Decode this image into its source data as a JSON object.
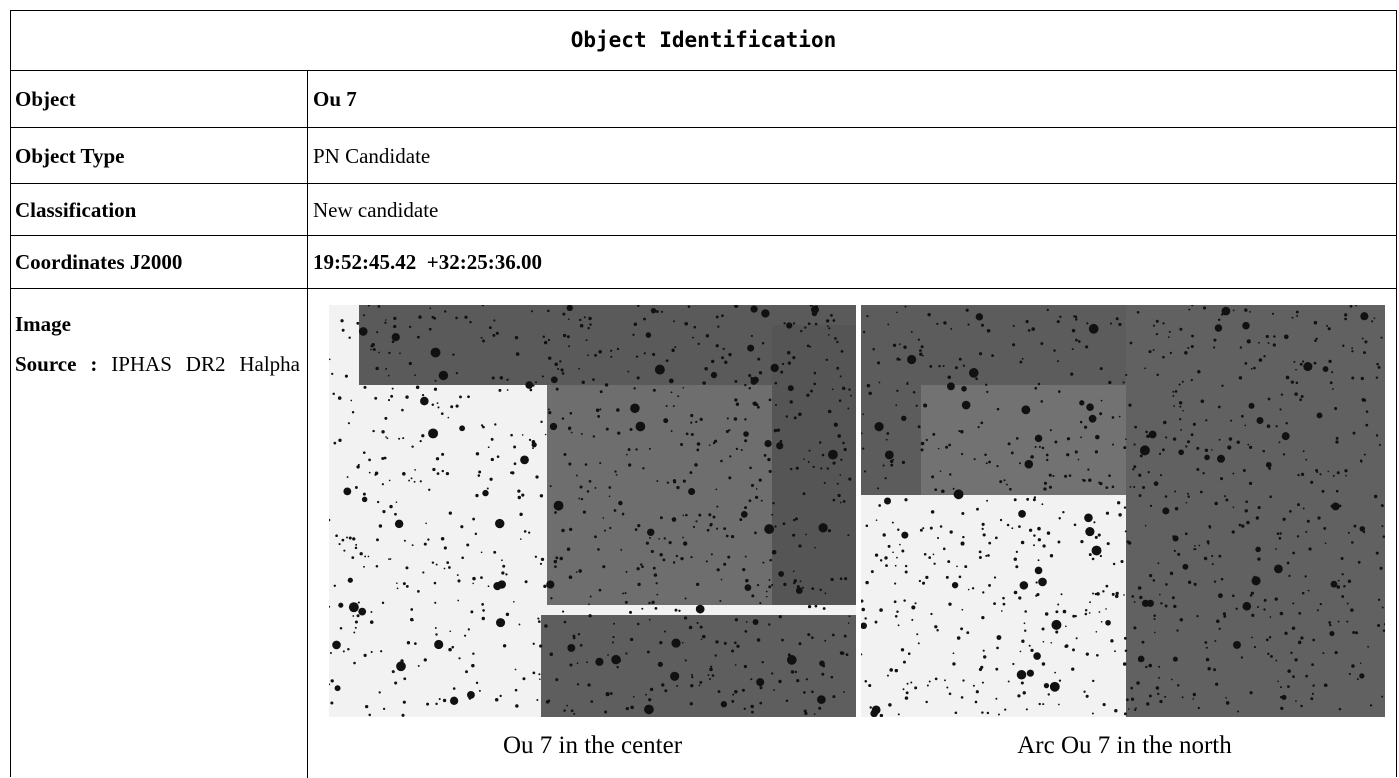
{
  "header": {
    "title": "Object Identification"
  },
  "rows": [
    {
      "label": "Object",
      "value": "Ou 7"
    },
    {
      "label": "Object Type",
      "value": "PN Candidate"
    },
    {
      "label": "Classification",
      "value": "New candidate"
    },
    {
      "label": "Coordinates J2000",
      "value": "19:52:45.42  +32:25:36.00"
    }
  ],
  "image_row": {
    "label": "Image",
    "source_label": "Source :",
    "source": "IPHAS DR2 Halpha",
    "captions": [
      "Ou 7 in the center",
      "Arc Ou 7 in the north"
    ]
  }
}
